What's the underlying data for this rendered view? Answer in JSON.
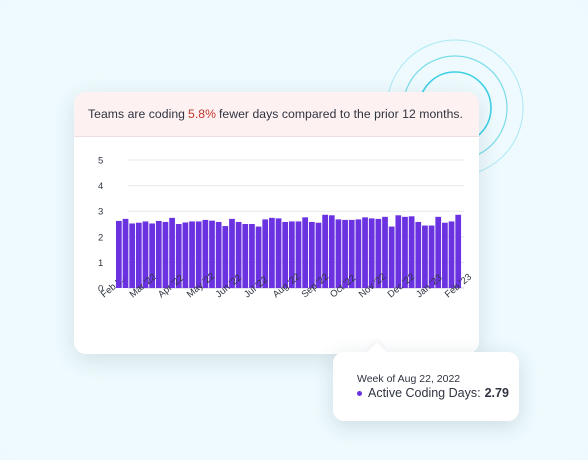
{
  "header": {
    "text_before": "Teams are coding",
    "percent": "5.8%",
    "text_after": "fewer days compared to the prior 12 months."
  },
  "colors": {
    "bar": "#6a32e0",
    "accent_red": "#c0392b",
    "ring": "#3fd0e6"
  },
  "chart_data": {
    "type": "bar",
    "ylim": [
      0,
      5
    ],
    "y_ticks": [
      "0",
      "1",
      "2",
      "3",
      "4",
      "5"
    ],
    "x_tick_labels": [
      "Feb '...",
      "Mar '22",
      "Apr '22",
      "May '22",
      "Jun '22",
      "Jul '22",
      "Aug '22",
      "Sep '22",
      "Oct '22",
      "Nov '22",
      "Dec '22",
      "Jan '23",
      "Feb '23"
    ],
    "values": [
      2.62,
      2.7,
      2.52,
      2.55,
      2.6,
      2.52,
      2.62,
      2.58,
      2.74,
      2.5,
      2.56,
      2.6,
      2.6,
      2.66,
      2.63,
      2.58,
      2.42,
      2.7,
      2.58,
      2.5,
      2.5,
      2.4,
      2.68,
      2.74,
      2.72,
      2.58,
      2.6,
      2.6,
      2.76,
      2.58,
      2.55,
      2.86,
      2.84,
      2.68,
      2.66,
      2.66,
      2.68,
      2.76,
      2.72,
      2.7,
      2.78,
      2.4,
      2.84,
      2.78,
      2.8,
      2.58,
      2.44,
      2.44,
      2.78,
      2.55,
      2.6,
      2.86
    ],
    "grid": true
  },
  "tooltip": {
    "week": "Week of Aug 22, 2022",
    "label": "Active Coding Days:",
    "value": "2.79"
  }
}
